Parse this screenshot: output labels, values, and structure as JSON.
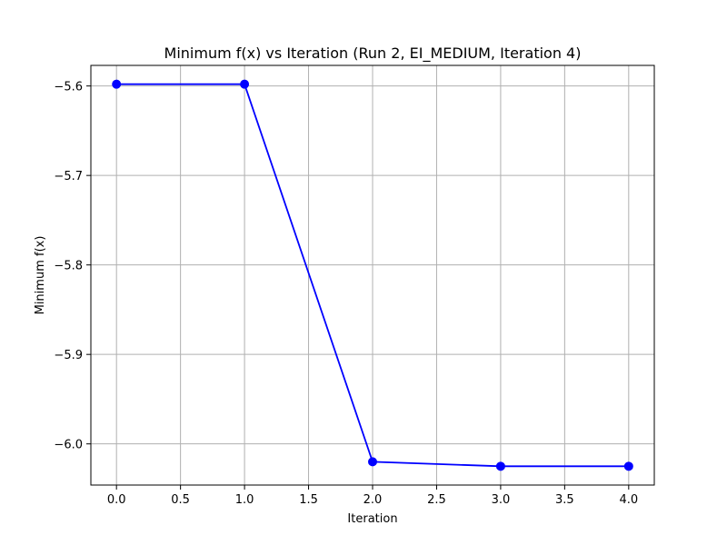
{
  "chart_data": {
    "type": "line",
    "title": "Minimum f(x) vs Iteration (Run 2, EI_MEDIUM, Iteration 4)",
    "xlabel": "Iteration",
    "ylabel": "Minimum f(x)",
    "x": [
      0,
      1,
      2,
      3,
      4
    ],
    "series": [
      {
        "values": [
          -5.598,
          -5.598,
          -6.02,
          -6.025,
          -6.025
        ],
        "color": "#0000ff",
        "marker": "circle"
      }
    ],
    "xlim": [
      -0.2,
      4.2
    ],
    "ylim": [
      -6.046,
      -5.577
    ],
    "xticks": [
      0.0,
      0.5,
      1.0,
      1.5,
      2.0,
      2.5,
      3.0,
      3.5,
      4.0
    ],
    "xtick_labels": [
      "0.0",
      "0.5",
      "1.0",
      "1.5",
      "2.0",
      "2.5",
      "3.0",
      "3.5",
      "4.0"
    ],
    "yticks": [
      -6.0,
      -5.9,
      -5.8,
      -5.7,
      -5.6
    ],
    "ytick_labels": [
      "−6.0",
      "−5.9",
      "−5.8",
      "−5.7",
      "−5.6"
    ],
    "grid": true,
    "grid_color": "#b0b0b0"
  }
}
